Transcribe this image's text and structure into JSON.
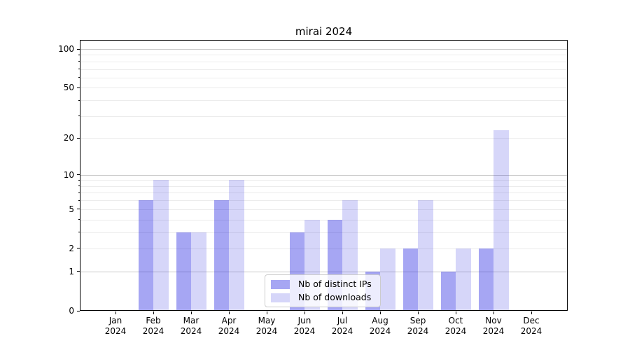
{
  "title": "mirai 2024",
  "chart_data": {
    "type": "bar",
    "title": "mirai 2024",
    "categories": [
      "Jan",
      "Feb",
      "Mar",
      "Apr",
      "May",
      "Jun",
      "Jul",
      "Aug",
      "Sep",
      "Oct",
      "Nov",
      "Dec"
    ],
    "year_label": "2024",
    "series": [
      {
        "name": "Nb of distinct IPs",
        "values": [
          0,
          6,
          3,
          6,
          0,
          3,
          4,
          1,
          2,
          1,
          2,
          0
        ]
      },
      {
        "name": "Nb of downloads",
        "values": [
          0,
          9,
          3,
          9,
          0,
          4,
          6,
          2,
          6,
          2,
          23,
          0
        ]
      }
    ],
    "y_axis": {
      "scale": "log10(1+x)",
      "tick_labels": [
        0,
        1,
        2,
        5,
        10,
        20,
        50,
        100
      ],
      "major_gridlines": [
        1,
        10,
        100
      ],
      "minor_gridlines": [
        2,
        3,
        4,
        5,
        6,
        7,
        8,
        9,
        20,
        30,
        40,
        50,
        60,
        70,
        80,
        90
      ],
      "range": [
        0,
        118
      ]
    },
    "xlabel": "",
    "ylabel": "",
    "grid": "horizontal",
    "legend_position": "lower center"
  },
  "colors": {
    "background": "#ffffff",
    "bar_ips": "rgba(0,0,220,0.35)",
    "bar_downloads": "rgba(0,0,220,0.16)",
    "grid_major": "#c9c9c9",
    "grid_minor": "#ececec",
    "axis": "#000000",
    "legend_border": "#cccccc"
  }
}
